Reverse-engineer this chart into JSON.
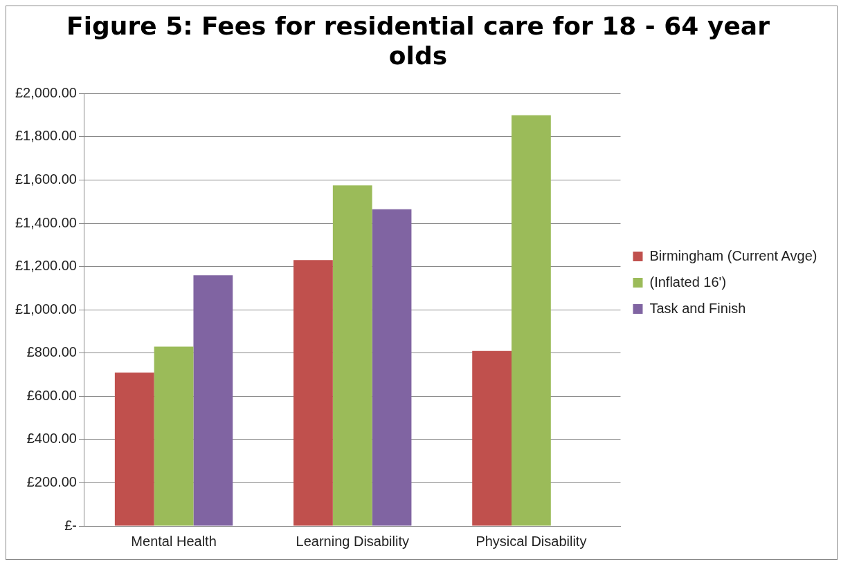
{
  "chart_data": {
    "type": "bar",
    "title": [
      "Figure 5: Fees for residential care for 18 - 64 year",
      "olds"
    ],
    "categories": [
      "Mental Health",
      "Learning Disability",
      "Physical Disability"
    ],
    "series": [
      {
        "name": "Birmingham (Current Avge)",
        "color": "#c0504d",
        "values": [
          710,
          1230,
          810
        ]
      },
      {
        "name": "(Inflated 16')",
        "color": "#9bbb59",
        "values": [
          830,
          1575,
          1900
        ]
      },
      {
        "name": "Task and Finish",
        "color": "#8064a2",
        "values": [
          1160,
          1465,
          null
        ]
      }
    ],
    "ylim": [
      0,
      2000
    ],
    "yticks": [
      {
        "value": 0,
        "label": "£-"
      },
      {
        "value": 200,
        "label": "£200.00"
      },
      {
        "value": 400,
        "label": "£400.00"
      },
      {
        "value": 600,
        "label": "£600.00"
      },
      {
        "value": 800,
        "label": "£800.00"
      },
      {
        "value": 1000,
        "label": "£1,000.00"
      },
      {
        "value": 1200,
        "label": "£1,200.00"
      },
      {
        "value": 1400,
        "label": "£1,400.00"
      },
      {
        "value": 1600,
        "label": "£1,600.00"
      },
      {
        "value": 1800,
        "label": "£1,800.00"
      },
      {
        "value": 2000,
        "label": "£2,000.00"
      }
    ],
    "grid": "y",
    "legend": "right"
  }
}
